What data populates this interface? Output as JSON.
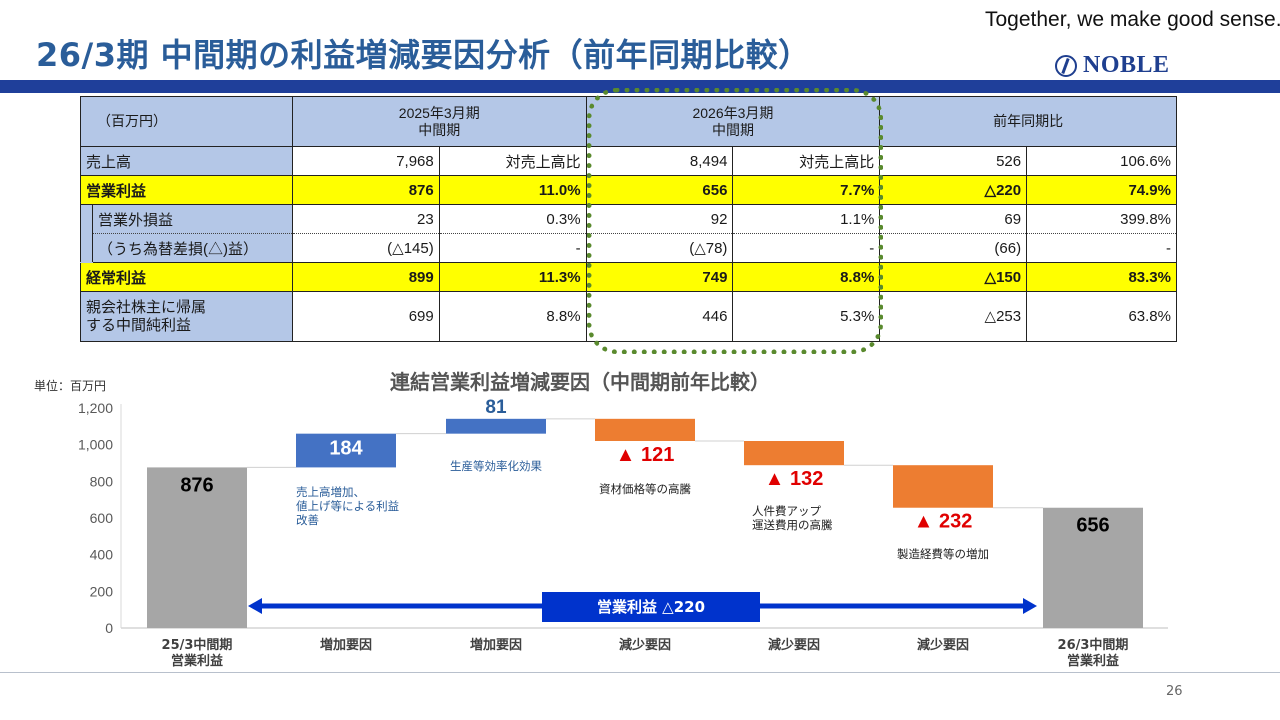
{
  "slide": {
    "title": "26/3期 中間期の利益増減要因分析（前年同期比較）",
    "tagline": "Together, we make good sense.",
    "logo_text": "NOBLE",
    "page_number": "26",
    "accent_color": "#1f3f9a",
    "title_color": "#2a5d99",
    "highlight_color": "#5a8a2e"
  },
  "table": {
    "unit": "（百万円）",
    "col_fy2025_line1": "2025年3月期",
    "col_fy2025_line2": "中間期",
    "col_fy2026_line1": "2026年3月期",
    "col_fy2026_line2": "中間期",
    "col_yoy": "前年同期比",
    "rows": {
      "sales": {
        "label": "売上高",
        "v2025": "7,968",
        "r2025": "対売上高比",
        "v2026": "8,494",
        "r2026": "対売上高比",
        "diff": "526",
        "pct": "106.6%"
      },
      "op": {
        "label": "営業利益",
        "v2025": "876",
        "r2025": "11.0%",
        "v2026": "656",
        "r2026": "7.7%",
        "diff": "△220",
        "pct": "74.9%"
      },
      "nonop": {
        "label": "営業外損益",
        "v2025": "23",
        "r2025": "0.3%",
        "v2026": "92",
        "r2026": "1.1%",
        "diff": "69",
        "pct": "399.8%"
      },
      "fx": {
        "label": "（うち為替差損(△)益）",
        "v2025": "(△145)",
        "r2025": "-",
        "v2026": "(△78)",
        "r2026": "-",
        "diff": "(66)",
        "pct": "-"
      },
      "ord": {
        "label": "経常利益",
        "v2025": "899",
        "r2025": "11.3%",
        "v2026": "749",
        "r2026": "8.8%",
        "diff": "△150",
        "pct": "83.3%"
      },
      "net": {
        "label_line1": "親会社株主に帰属",
        "label_line2": "する中間純利益",
        "v2025": "699",
        "r2025": "8.8%",
        "v2026": "446",
        "r2026": "5.3%",
        "diff": "△253",
        "pct": "63.8%"
      }
    }
  },
  "chart_title": "連結営業利益増減要因（中間期前年比較）",
  "unit_label": "単位：百万円",
  "chart_data": {
    "type": "bar",
    "subtype": "waterfall",
    "title": "連結営業利益増減要因（中間期前年比較）",
    "ylabel": "単位：百万円",
    "ylim": [
      0,
      1200
    ],
    "yticks": [
      "0",
      "200",
      "400",
      "600",
      "800",
      "1,000",
      "1,200"
    ],
    "ytick_values": [
      0,
      200,
      400,
      600,
      800,
      1000,
      1200
    ],
    "grid": false,
    "bars": [
      {
        "category": "25/3中間期\n営業利益",
        "kind": "total",
        "value": 876,
        "label": "876",
        "color": "#a6a6a6",
        "annotation": ""
      },
      {
        "category": "増加要因",
        "kind": "increase",
        "value": 184,
        "label": "184",
        "color": "#4472c4",
        "annotation": "売上高増加、\n値上げ等による利益\n改善"
      },
      {
        "category": "増加要因",
        "kind": "increase",
        "value": 81,
        "label": "81",
        "color": "#4472c4",
        "annotation": "生産等効率化効果"
      },
      {
        "category": "減少要因",
        "kind": "decrease",
        "value": 121,
        "label": "▲ 121",
        "color": "#ed7d31",
        "annotation": "資材価格等の高騰"
      },
      {
        "category": "減少要因",
        "kind": "decrease",
        "value": 132,
        "label": "▲ 132",
        "color": "#ed7d31",
        "annotation": "人件費アップ\n運送費用の高騰"
      },
      {
        "category": "減少要因",
        "kind": "decrease",
        "value": 232,
        "label": "▲ 232",
        "color": "#ed7d31",
        "annotation": "製造経費等の増加"
      },
      {
        "category": "26/3中間期\n営業利益",
        "kind": "total",
        "value": 656,
        "label": "656",
        "color": "#a6a6a6",
        "annotation": ""
      }
    ],
    "arrow": {
      "label": "営業利益 △220",
      "color": "#0033cc"
    }
  }
}
